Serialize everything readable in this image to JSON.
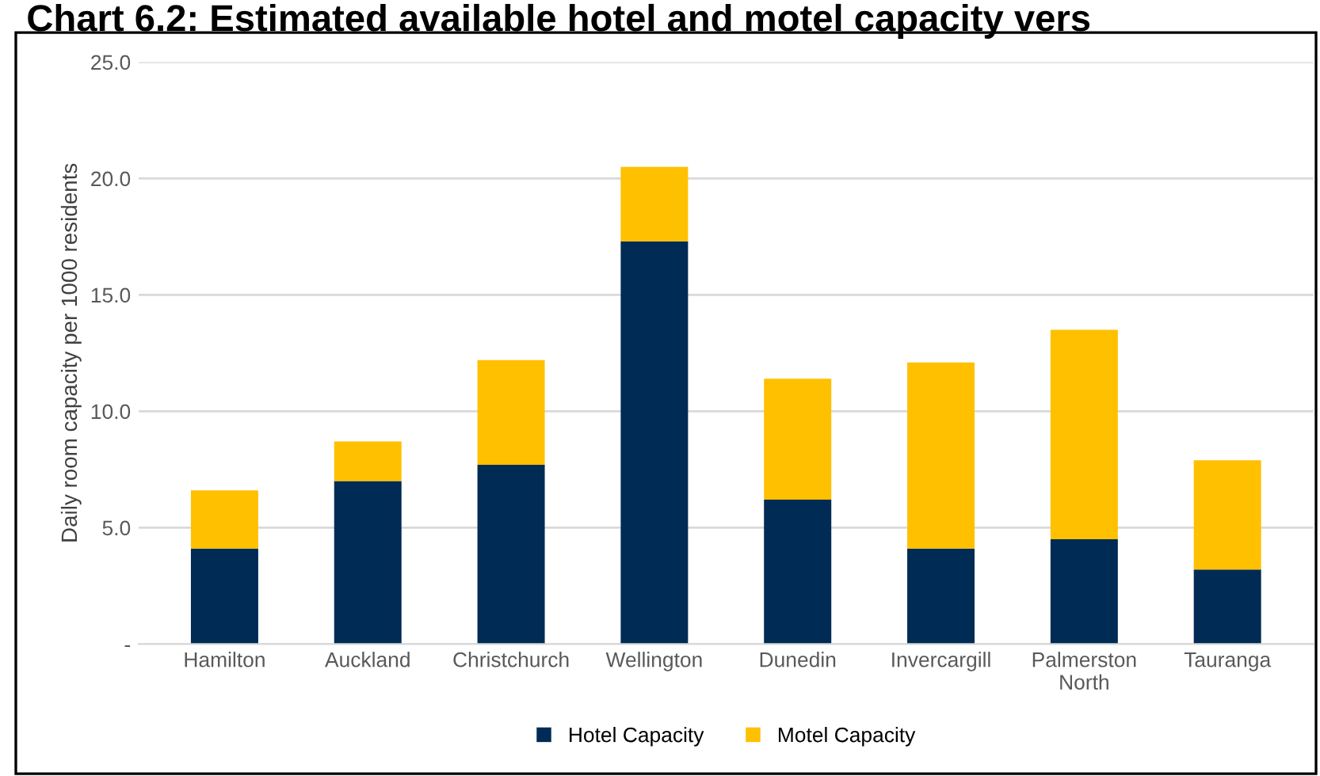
{
  "chart_data": {
    "type": "bar",
    "stacked": true,
    "title": "Chart 6.2: Estimated available hotel and motel capacity vers",
    "ylabel": "Daily room capacity per 1000 residents",
    "categories": [
      "Hamilton",
      "Auckland",
      "Christchurch",
      "Wellington",
      "Dunedin",
      "Invercargill",
      "Palmerston\nNorth",
      "Tauranga"
    ],
    "series": [
      {
        "name": "Hotel Capacity",
        "color": "#002b54",
        "values": [
          4.1,
          7.0,
          7.7,
          17.3,
          6.2,
          4.1,
          4.5,
          3.2
        ]
      },
      {
        "name": "Motel Capacity",
        "color": "#ffc000",
        "values": [
          2.5,
          1.7,
          4.5,
          3.2,
          5.2,
          8.0,
          9.0,
          4.7
        ]
      }
    ],
    "ylim": [
      0,
      25
    ],
    "yticks": [
      {
        "value": 0,
        "label": "-"
      },
      {
        "value": 5,
        "label": "5.0"
      },
      {
        "value": 10,
        "label": "10.0"
      },
      {
        "value": 15,
        "label": "15.0"
      },
      {
        "value": 20,
        "label": "20.0"
      },
      {
        "value": 25,
        "label": "25.0"
      }
    ],
    "grid": "y",
    "legend": "bottom"
  }
}
